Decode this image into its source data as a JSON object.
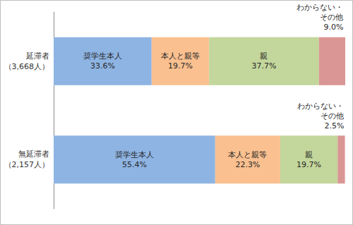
{
  "chart_data": {
    "type": "bar",
    "orientation": "horizontal",
    "stacked": true,
    "categories": [
      "延滞者\n（3,668人）",
      "無延滞者\n（2,157人）"
    ],
    "series": [
      {
        "name": "奨学生本人",
        "color": "#8EB4E3",
        "values": [
          33.6,
          55.4
        ],
        "value_labels": [
          "33.6%",
          "55.4%"
        ]
      },
      {
        "name": "本人と親等",
        "color": "#FAC090",
        "values": [
          19.7,
          22.3
        ],
        "value_labels": [
          "19.7%",
          "22.3%"
        ]
      },
      {
        "name": "親",
        "color": "#C3D69B",
        "values": [
          37.7,
          19.7
        ],
        "value_labels": [
          "37.7%",
          "19.7%"
        ]
      },
      {
        "name": "わからない・その他",
        "color": "#D99694",
        "values": [
          9.0,
          2.5
        ],
        "value_labels": [
          "9.0%",
          "2.5%"
        ]
      }
    ],
    "xlim": [
      0,
      100
    ],
    "grid": false,
    "data_labels": true,
    "tick_labels": "y"
  }
}
